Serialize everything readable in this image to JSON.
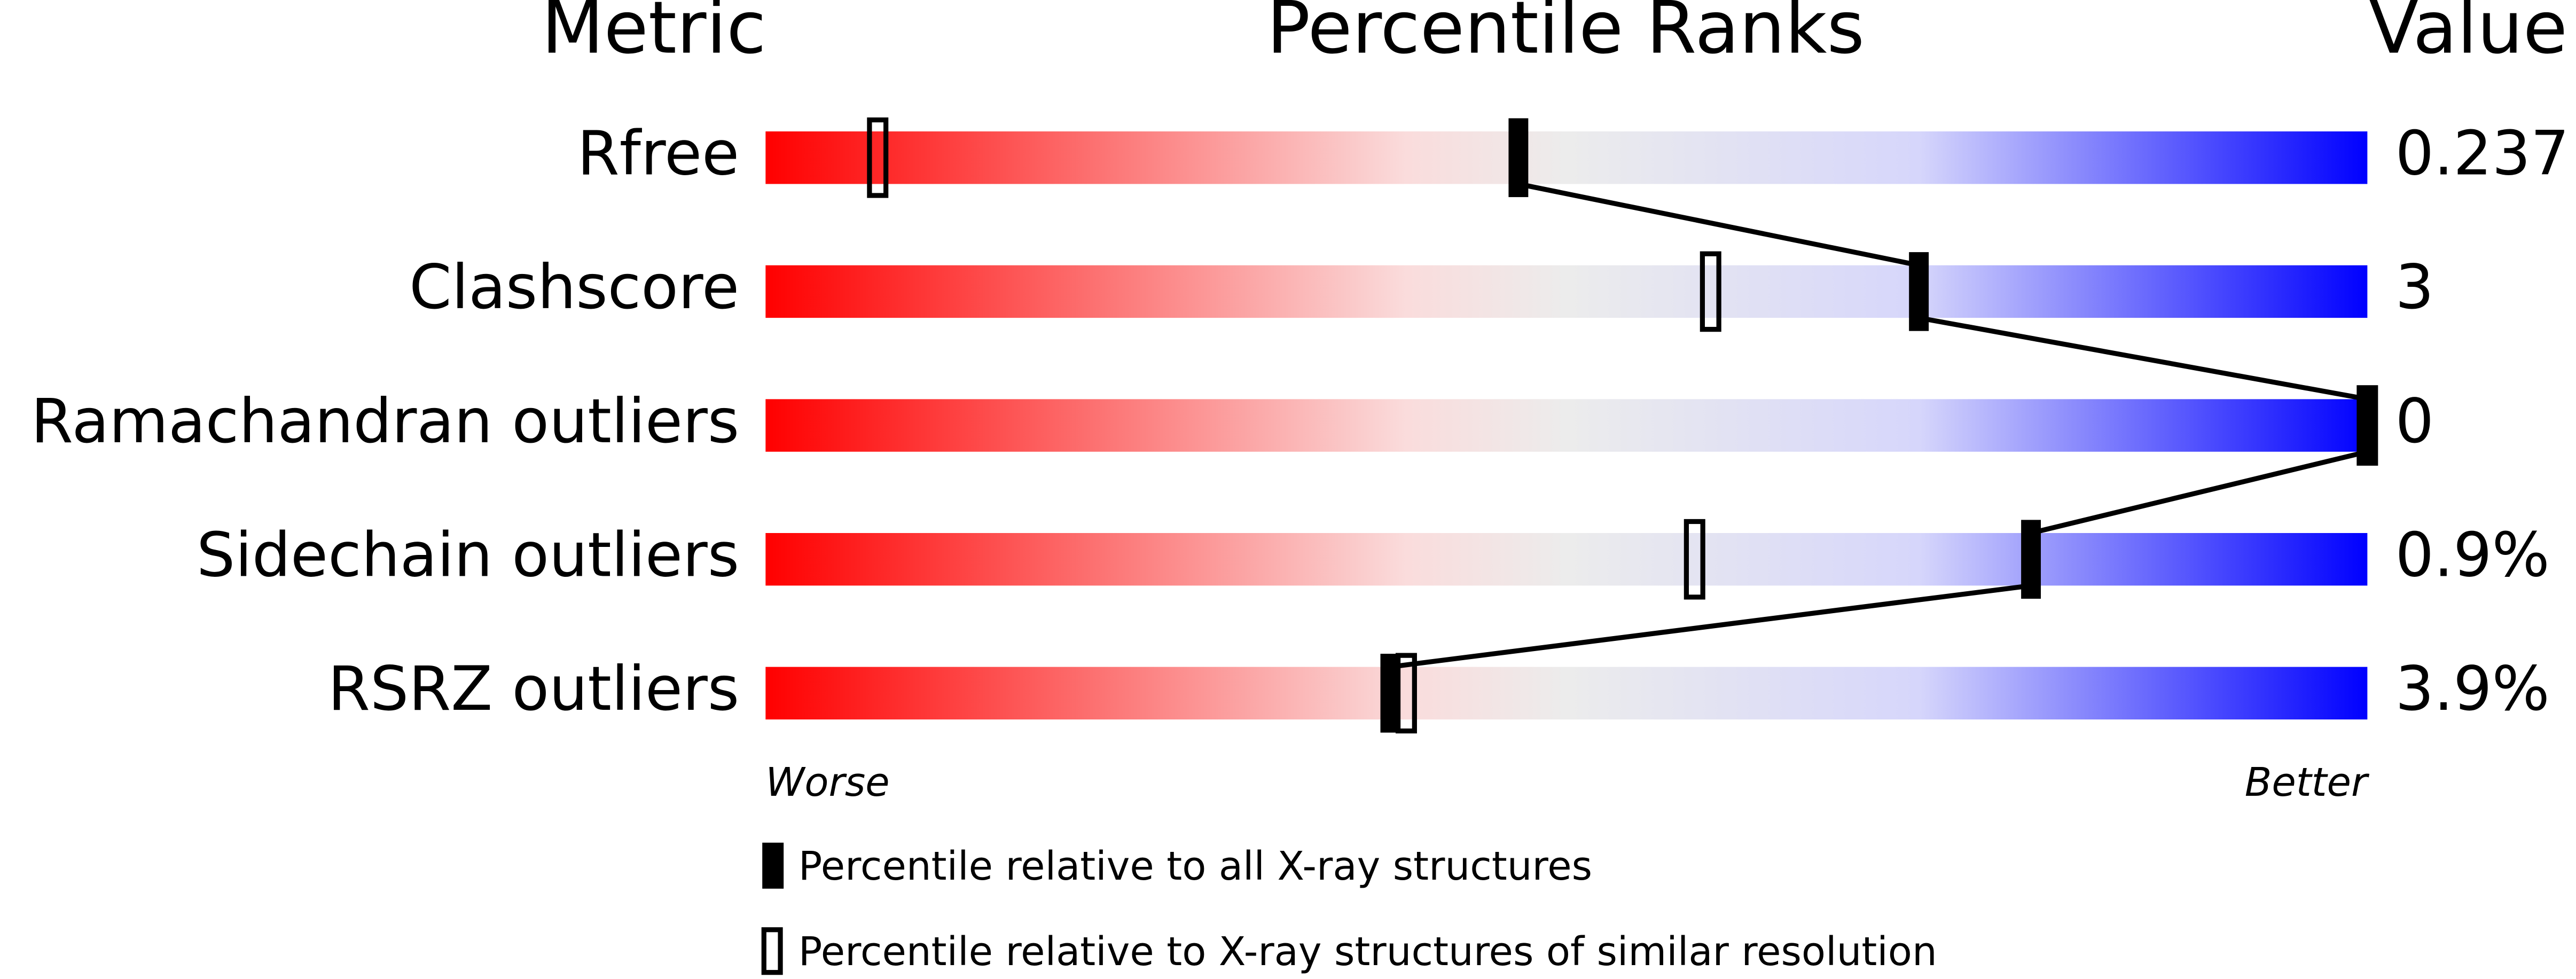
{
  "chart_data": {
    "type": "percentile",
    "headers": [
      "Metric",
      "Percentile Ranks",
      "Value"
    ],
    "categories": [
      "Rfree",
      "Clashscore",
      "Ramachandran outliers",
      "Sidechain outliers",
      "RSRZ outliers"
    ],
    "metric_values": [
      "0.237",
      "3",
      "0",
      "0.9%",
      "3.9%"
    ],
    "xlim": [
      0,
      100
    ],
    "axis_ends": [
      "Worse",
      "Better"
    ],
    "series": [
      {
        "name": "Percentile relative to all X-ray structures",
        "color": "#000000",
        "filled": true,
        "values": [
          47,
          72,
          100,
          79,
          39
        ]
      },
      {
        "name": "Percentile relative to X-ray structures of similar resolution",
        "color": "#000000",
        "filled": false,
        "values": [
          7,
          59,
          100,
          58,
          40
        ]
      }
    ]
  }
}
